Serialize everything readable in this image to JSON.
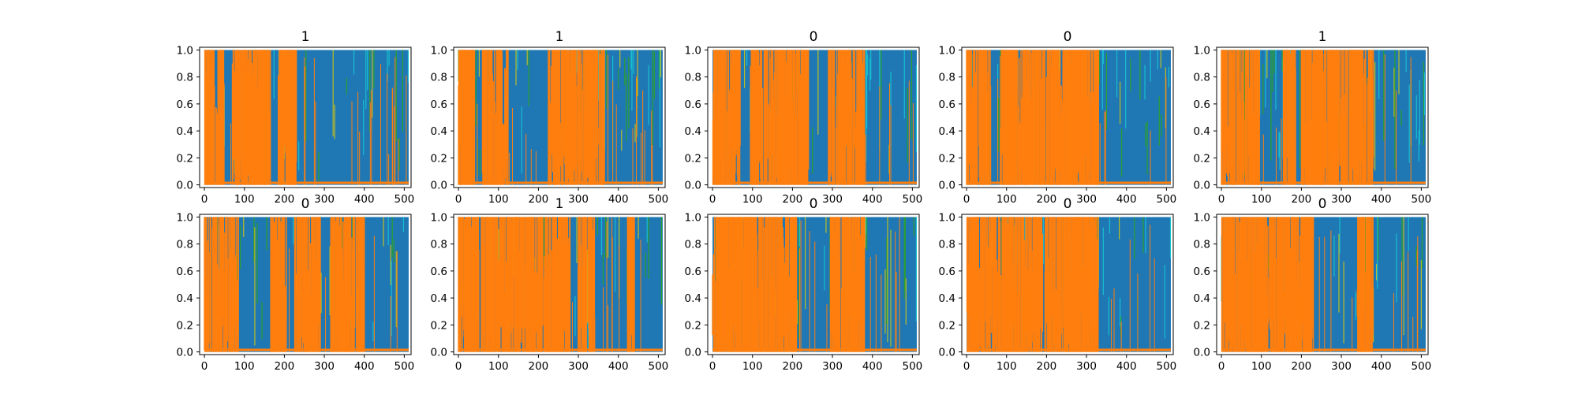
{
  "chart_data": [
    {
      "type": "area",
      "title": "1",
      "xlim": [
        -12,
        517
      ],
      "ylim": [
        -0.02,
        1.02
      ],
      "xticks": [
        "0",
        "100",
        "200",
        "300",
        "400",
        "500"
      ],
      "yticks": [
        "0.0",
        "0.2",
        "0.4",
        "0.6",
        "0.8",
        "1.0"
      ],
      "orange_blocks": [
        [
          0,
          50
        ],
        [
          70,
          165
        ],
        [
          185,
          230
        ]
      ],
      "series_colors": [
        "#1f77b4",
        "#ff7f0e",
        "#17becf",
        "#bcbd22",
        "#2ca02c"
      ],
      "grid": false
    },
    {
      "type": "area",
      "title": "1",
      "xlim": [
        -12,
        517
      ],
      "ylim": [
        -0.02,
        1.02
      ],
      "xticks": [
        "0",
        "100",
        "200",
        "300",
        "400",
        "500"
      ],
      "yticks": [
        "0.0",
        "0.2",
        "0.4",
        "0.6",
        "0.8",
        "1.0"
      ],
      "orange_blocks": [
        [
          0,
          40
        ],
        [
          60,
          125
        ],
        [
          225,
          365
        ]
      ],
      "series_colors": [
        "#1f77b4",
        "#ff7f0e",
        "#17becf",
        "#bcbd22",
        "#2ca02c"
      ],
      "grid": false
    },
    {
      "type": "area",
      "title": "0",
      "xlim": [
        -12,
        517
      ],
      "ylim": [
        -0.02,
        1.02
      ],
      "xticks": [
        "0",
        "100",
        "200",
        "300",
        "400",
        "500"
      ],
      "yticks": [
        "0.0",
        "0.2",
        "0.4",
        "0.6",
        "0.8",
        "1.0"
      ],
      "orange_blocks": [
        [
          0,
          70
        ],
        [
          95,
          240
        ],
        [
          290,
          380
        ]
      ],
      "series_colors": [
        "#1f77b4",
        "#ff7f0e",
        "#17becf",
        "#bcbd22",
        "#2ca02c"
      ],
      "grid": false
    },
    {
      "type": "area",
      "title": "0",
      "xlim": [
        -12,
        517
      ],
      "ylim": [
        -0.02,
        1.02
      ],
      "xticks": [
        "0",
        "100",
        "200",
        "300",
        "400",
        "500"
      ],
      "yticks": [
        "0.0",
        "0.2",
        "0.4",
        "0.6",
        "0.8",
        "1.0"
      ],
      "orange_blocks": [
        [
          0,
          60
        ],
        [
          85,
          330
        ]
      ],
      "series_colors": [
        "#1f77b4",
        "#ff7f0e",
        "#17becf",
        "#bcbd22",
        "#2ca02c"
      ],
      "grid": false
    },
    {
      "type": "area",
      "title": "1",
      "xlim": [
        -12,
        517
      ],
      "ylim": [
        -0.02,
        1.02
      ],
      "xticks": [
        "0",
        "100",
        "200",
        "300",
        "400",
        "500"
      ],
      "yticks": [
        "0.0",
        "0.2",
        "0.4",
        "0.6",
        "0.8",
        "1.0"
      ],
      "orange_blocks": [
        [
          0,
          95
        ],
        [
          155,
          185
        ],
        [
          200,
          380
        ]
      ],
      "series_colors": [
        "#1f77b4",
        "#ff7f0e",
        "#17becf",
        "#bcbd22",
        "#2ca02c"
      ],
      "grid": false
    },
    {
      "type": "area",
      "title": "0",
      "xlim": [
        -12,
        517
      ],
      "ylim": [
        -0.02,
        1.02
      ],
      "xticks": [
        "0",
        "100",
        "200",
        "300",
        "400",
        "500"
      ],
      "yticks": [
        "0.0",
        "0.2",
        "0.4",
        "0.6",
        "0.8",
        "1.0"
      ],
      "orange_blocks": [
        [
          0,
          85
        ],
        [
          165,
          205
        ],
        [
          225,
          290
        ],
        [
          315,
          400
        ]
      ],
      "series_colors": [
        "#1f77b4",
        "#ff7f0e",
        "#17becf",
        "#bcbd22",
        "#2ca02c"
      ],
      "grid": false
    },
    {
      "type": "area",
      "title": "1",
      "xlim": [
        -12,
        517
      ],
      "ylim": [
        -0.02,
        1.02
      ],
      "xticks": [
        "0",
        "100",
        "200",
        "300",
        "400",
        "500"
      ],
      "yticks": [
        "0.0",
        "0.2",
        "0.4",
        "0.6",
        "0.8",
        "1.0"
      ],
      "orange_blocks": [
        [
          0,
          280
        ],
        [
          300,
          340
        ],
        [
          420,
          440
        ]
      ],
      "series_colors": [
        "#1f77b4",
        "#ff7f0e",
        "#17becf",
        "#bcbd22",
        "#2ca02c"
      ],
      "grid": false
    },
    {
      "type": "area",
      "title": "0",
      "xlim": [
        -12,
        517
      ],
      "ylim": [
        -0.02,
        1.02
      ],
      "xticks": [
        "0",
        "100",
        "200",
        "300",
        "400",
        "500"
      ],
      "yticks": [
        "0.0",
        "0.2",
        "0.4",
        "0.6",
        "0.8",
        "1.0"
      ],
      "orange_blocks": [
        [
          0,
          210
        ],
        [
          295,
          380
        ]
      ],
      "series_colors": [
        "#1f77b4",
        "#ff7f0e",
        "#17becf",
        "#bcbd22",
        "#2ca02c"
      ],
      "grid": false
    },
    {
      "type": "area",
      "title": "0",
      "xlim": [
        -12,
        517
      ],
      "ylim": [
        -0.02,
        1.02
      ],
      "xticks": [
        "0",
        "100",
        "200",
        "300",
        "400",
        "500"
      ],
      "yticks": [
        "0.0",
        "0.2",
        "0.4",
        "0.6",
        "0.8",
        "1.0"
      ],
      "orange_blocks": [
        [
          0,
          330
        ]
      ],
      "series_colors": [
        "#1f77b4",
        "#ff7f0e",
        "#17becf",
        "#bcbd22",
        "#2ca02c"
      ],
      "grid": false
    },
    {
      "type": "area",
      "title": "0",
      "xlim": [
        -12,
        517
      ],
      "ylim": [
        -0.02,
        1.02
      ],
      "xticks": [
        "0",
        "100",
        "200",
        "300",
        "400",
        "500"
      ],
      "yticks": [
        "0.0",
        "0.2",
        "0.4",
        "0.6",
        "0.8",
        "1.0"
      ],
      "orange_blocks": [
        [
          0,
          230
        ],
        [
          340,
          380
        ]
      ],
      "series_colors": [
        "#1f77b4",
        "#ff7f0e",
        "#17becf",
        "#bcbd22",
        "#2ca02c"
      ],
      "grid": false
    }
  ]
}
